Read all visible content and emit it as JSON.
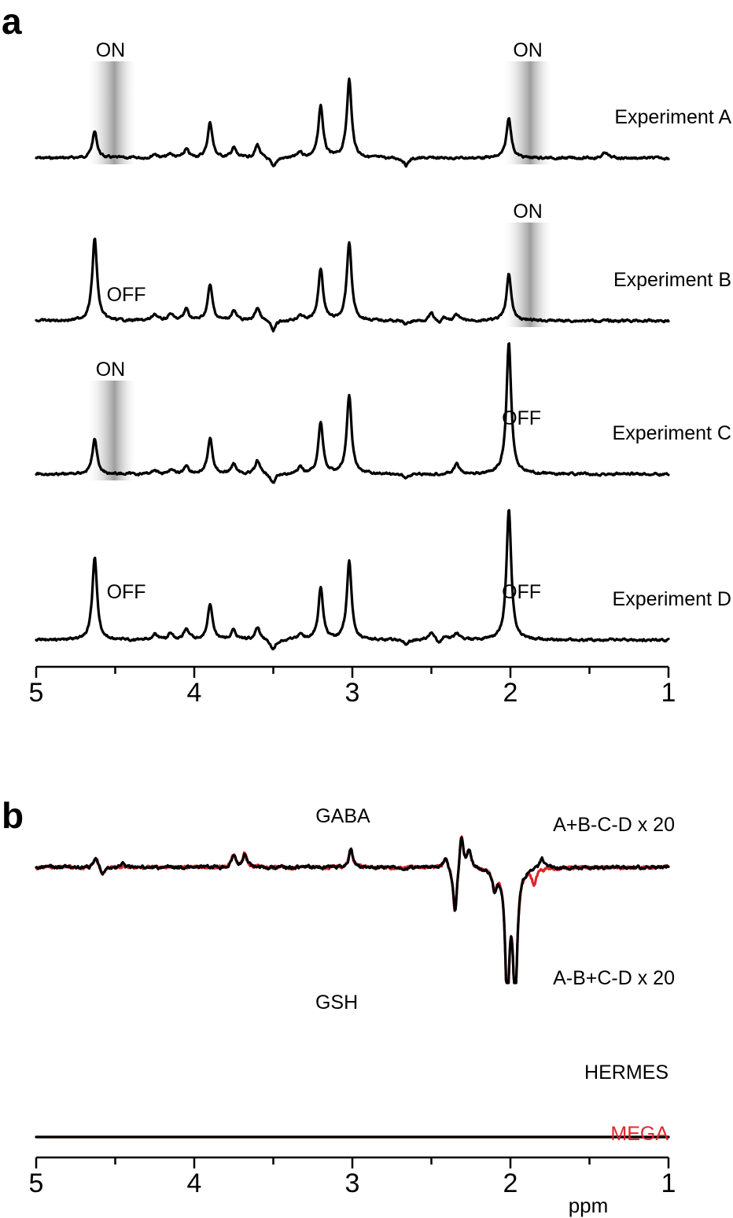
{
  "panels": {
    "a": "a",
    "b": "b"
  },
  "colors": {
    "hermes": "#000000",
    "mega": "#e0262b",
    "shade_mid": "#9e9e9e",
    "shade_edge": "#ffffff"
  },
  "chart_data": [
    {
      "type": "line",
      "panel": "a",
      "xlabel": "",
      "xlim": [
        5,
        1
      ],
      "xdirection": "reversed",
      "xticks": [
        5,
        4,
        3,
        2,
        1
      ],
      "series": [
        {
          "name": "Experiment A",
          "label": "Experiment A",
          "peaks": [
            [
              4.63,
              0.32
            ],
            [
              3.9,
              0.43
            ],
            [
              3.2,
              0.63
            ],
            [
              3.02,
              0.95
            ],
            [
              2.01,
              0.49
            ],
            [
              3.75,
              0.12
            ],
            [
              3.6,
              0.16
            ],
            [
              4.05,
              0.1
            ],
            [
              4.25,
              0.05
            ],
            [
              4.15,
              0.05
            ],
            [
              3.33,
              0.07
            ],
            [
              2.66,
              -0.09
            ],
            [
              1.4,
              0.07
            ]
          ],
          "dip": [
            [
              3.5,
              -0.12
            ]
          ]
        },
        {
          "name": "Experiment B",
          "label": "Experiment B",
          "peaks": [
            [
              4.63,
              1.0
            ],
            [
              3.9,
              0.43
            ],
            [
              3.2,
              0.63
            ],
            [
              3.02,
              0.95
            ],
            [
              2.01,
              0.56
            ],
            [
              3.75,
              0.12
            ],
            [
              3.6,
              0.16
            ],
            [
              4.05,
              0.14
            ],
            [
              4.25,
              0.08
            ],
            [
              4.15,
              0.08
            ],
            [
              3.33,
              0.07
            ],
            [
              2.5,
              0.09
            ],
            [
              2.42,
              0.05
            ],
            [
              2.34,
              0.07
            ],
            [
              2.66,
              -0.05
            ]
          ],
          "dip": [
            [
              3.5,
              -0.13
            ],
            [
              2.45,
              -0.05
            ]
          ]
        },
        {
          "name": "Experiment C",
          "label": "Experiment C",
          "peaks": [
            [
              4.63,
              0.42
            ],
            [
              3.9,
              0.43
            ],
            [
              3.2,
              0.63
            ],
            [
              3.02,
              0.95
            ],
            [
              2.01,
              1.6
            ],
            [
              3.75,
              0.12
            ],
            [
              3.6,
              0.16
            ],
            [
              4.05,
              0.1
            ],
            [
              4.25,
              0.05
            ],
            [
              4.15,
              0.05
            ],
            [
              3.33,
              0.07
            ],
            [
              2.34,
              0.12
            ],
            [
              2.66,
              -0.05
            ]
          ],
          "dip": [
            [
              3.5,
              -0.12
            ]
          ]
        },
        {
          "name": "Experiment D",
          "label": "Experiment D",
          "peaks": [
            [
              4.63,
              1.0
            ],
            [
              3.9,
              0.43
            ],
            [
              3.2,
              0.63
            ],
            [
              3.02,
              0.95
            ],
            [
              2.01,
              1.6
            ],
            [
              3.75,
              0.12
            ],
            [
              3.6,
              0.16
            ],
            [
              4.05,
              0.14
            ],
            [
              4.25,
              0.08
            ],
            [
              4.15,
              0.08
            ],
            [
              3.33,
              0.07
            ],
            [
              2.5,
              0.09
            ],
            [
              2.42,
              0.05
            ],
            [
              2.34,
              0.07
            ],
            [
              2.66,
              -0.05
            ]
          ],
          "dip": [
            [
              3.5,
              -0.13
            ],
            [
              2.45,
              -0.05
            ]
          ]
        }
      ],
      "annotations": [
        {
          "experiment": "Experiment A",
          "text": "ON",
          "ppm": 4.53,
          "shaded": true,
          "band": [
            4.67,
            4.37
          ]
        },
        {
          "experiment": "Experiment A",
          "text": "ON",
          "ppm": 1.89,
          "shaded": true,
          "band": [
            2.04,
            1.74
          ]
        },
        {
          "experiment": "Experiment B",
          "text": "OFF",
          "ppm": 4.43,
          "shaded": false
        },
        {
          "experiment": "Experiment B",
          "text": "ON",
          "ppm": 1.89,
          "shaded": true,
          "band": [
            2.04,
            1.74
          ]
        },
        {
          "experiment": "Experiment C",
          "text": "ON",
          "ppm": 4.53,
          "shaded": true,
          "band": [
            4.67,
            4.37
          ]
        },
        {
          "experiment": "Experiment C",
          "text": "OFF",
          "ppm": 1.93,
          "shaded": false
        },
        {
          "experiment": "Experiment D",
          "text": "OFF",
          "ppm": 4.43,
          "shaded": false
        },
        {
          "experiment": "Experiment D",
          "text": "OFF",
          "ppm": 1.93,
          "shaded": false
        }
      ]
    },
    {
      "type": "line",
      "panel": "b",
      "xlabel": "ppm",
      "xlim": [
        5,
        1
      ],
      "xdirection": "reversed",
      "xticks": [
        5,
        4,
        3,
        2,
        1
      ],
      "legend": [
        {
          "name": "HERMES",
          "color": "#000000"
        },
        {
          "name": "MEGA",
          "color": "#e0262b"
        }
      ],
      "groups": [
        {
          "label": "A+B-C-D x 20",
          "metabolite": "GABA",
          "metabolite_ppm": 3.01,
          "series": [
            {
              "name": "HERMES",
              "peaks": [
                [
                  3.01,
                  0.8
                ],
                [
                  3.75,
                  0.6
                ],
                [
                  3.68,
                  0.6
                ],
                [
                  2.31,
                  1.6
                ],
                [
                  2.26,
                  0.8
                ],
                [
                  1.8,
                  0.5
                ],
                [
                  4.62,
                  0.45
                ],
                [
                  4.45,
                  0.2
                ],
                [
                  2.41,
                  0.5
                ]
              ],
              "dips": [
                [
                  2.35,
                  -2.2
                ],
                [
                  2.02,
                  -6.0
                ],
                [
                  1.97,
                  -6.0
                ],
                [
                  4.58,
                  -0.4
                ],
                [
                  2.1,
                  -0.9
                ]
              ]
            },
            {
              "name": "MEGA",
              "peaks": [
                [
                  3.01,
                  0.8
                ],
                [
                  3.75,
                  0.6
                ],
                [
                  3.68,
                  0.6
                ],
                [
                  2.31,
                  1.6
                ],
                [
                  2.26,
                  0.8
                ],
                [
                  4.62,
                  0.45
                ],
                [
                  2.41,
                  0.5
                ]
              ],
              "dips": [
                [
                  2.35,
                  -2.2
                ],
                [
                  2.02,
                  -6.0
                ],
                [
                  1.97,
                  -6.0
                ],
                [
                  4.58,
                  -0.4
                ],
                [
                  2.1,
                  -0.9
                ],
                [
                  1.85,
                  -0.7
                ]
              ]
            }
          ]
        },
        {
          "label": "A-B+C-D x 20",
          "metabolite": "GSH",
          "metabolite_ppm": 2.95,
          "series": [
            {
              "name": "HERMES",
              "peaks": [
                [
                  2.66,
                  2.2
                ],
                [
                  2.49,
                  1.9
                ],
                [
                  4.5,
                  1.2
                ],
                [
                  1.4,
                  1.0
                ],
                [
                  1.73,
                  0.6
                ],
                [
                  1.82,
                  0.4
                ]
              ],
              "dips": [
                [
                  4.65,
                  -4.5
                ],
                [
                  4.6,
                  -4.5
                ],
                [
                  2.44,
                  -2.5
                ],
                [
                  2.7,
                  -1.2
                ],
                [
                  2.52,
                  -1.0
                ],
                [
                  1.98,
                  -0.9
                ],
                [
                  2.83,
                  -0.4
                ]
              ]
            },
            {
              "name": "MEGA",
              "peaks": [
                [
                  2.66,
                  2.2
                ],
                [
                  2.49,
                  1.9
                ],
                [
                  4.5,
                  1.2
                ],
                [
                  1.4,
                  1.0
                ]
              ],
              "dips": [
                [
                  4.65,
                  -4.5
                ],
                [
                  4.6,
                  -4.5
                ],
                [
                  2.44,
                  -2.5
                ],
                [
                  2.7,
                  -1.2
                ],
                [
                  2.52,
                  -1.0
                ],
                [
                  4.35,
                  -0.6
                ],
                [
                  2.05,
                  -0.5
                ]
              ]
            }
          ]
        }
      ]
    }
  ]
}
